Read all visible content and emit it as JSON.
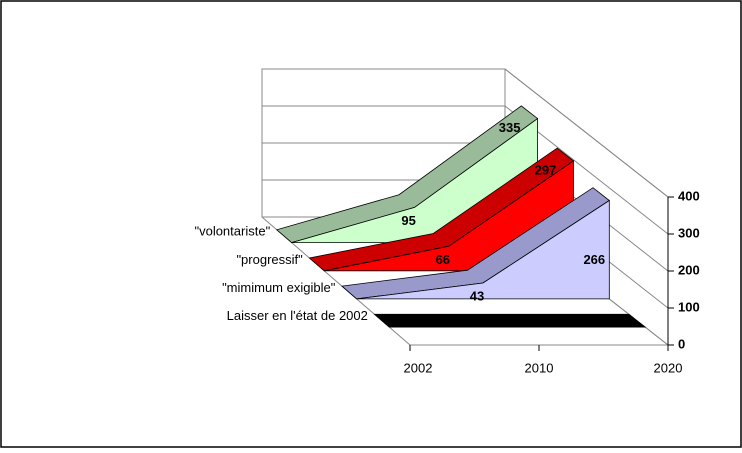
{
  "chart_data": {
    "type": "ribbon3d",
    "categories": [
      "2002",
      "2010",
      "2020"
    ],
    "zlim": [
      0,
      400
    ],
    "zticks": [
      0,
      100,
      200,
      300,
      400
    ],
    "grid": true,
    "series": [
      {
        "name": "\"volontariste\"",
        "face_color": "#ccffcc",
        "top_color": "#99bb99",
        "values": [
          0,
          95,
          335
        ],
        "value_labels": [
          null,
          "95",
          "335"
        ]
      },
      {
        "name": "\"progressif\"",
        "face_color": "#ff0000",
        "top_color": "#cc0000",
        "values": [
          0,
          66,
          297
        ],
        "value_labels": [
          null,
          "66",
          "297"
        ]
      },
      {
        "name": "\"mimimum exigible\"",
        "face_color": "#ccccff",
        "top_color": "#9999cc",
        "values": [
          0,
          43,
          266
        ],
        "value_labels": [
          null,
          "43",
          "266"
        ]
      },
      {
        "name": "Laisser en l'état de 2002",
        "face_color": "#000000",
        "top_color": "#000000",
        "values": [
          0,
          0,
          0
        ]
      }
    ]
  }
}
